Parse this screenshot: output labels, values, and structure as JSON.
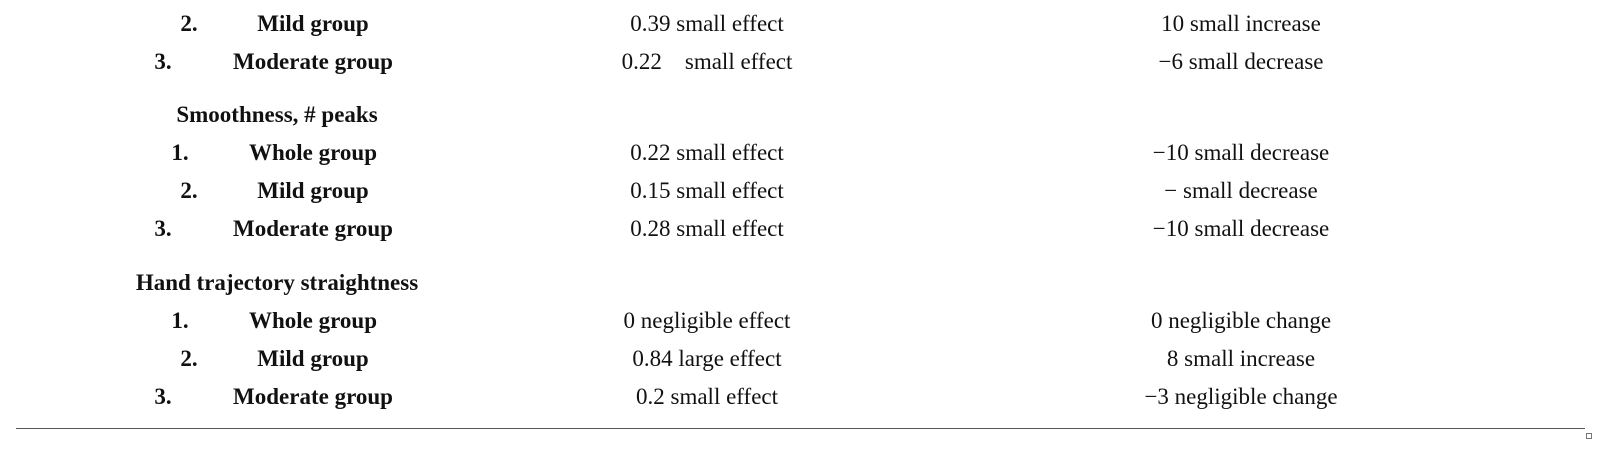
{
  "rows": [
    {
      "num": "2.",
      "group": "Mild group",
      "effect": "0.39 small effect",
      "change": "10 small increase"
    },
    {
      "num": "3.",
      "group": "Moderate group",
      "effect": "0.22    small effect",
      "change": "−6 small decrease"
    }
  ],
  "sections": [
    {
      "title": "Smoothness, # peaks",
      "rows": [
        {
          "num": "1.",
          "group": "Whole group",
          "effect": "0.22 small effect",
          "change": "−10 small decrease"
        },
        {
          "num": "2.",
          "group": "Mild group",
          "effect": "0.15 small effect",
          "change": "− small decrease"
        },
        {
          "num": "3.",
          "group": "Moderate group",
          "effect": "0.28 small effect",
          "change": "−10 small decrease"
        }
      ]
    },
    {
      "title": "Hand trajectory straightness",
      "rows": [
        {
          "num": "1.",
          "group": "Whole group",
          "effect": "0 negligible effect",
          "change": "0 negligible change"
        },
        {
          "num": "2.",
          "group": "Mild group",
          "effect": "0.84 large effect",
          "change": "8 small increase"
        },
        {
          "num": "3.",
          "group": "Moderate group",
          "effect": "0.2 small effect",
          "change": "−3 negligible change"
        }
      ]
    }
  ]
}
